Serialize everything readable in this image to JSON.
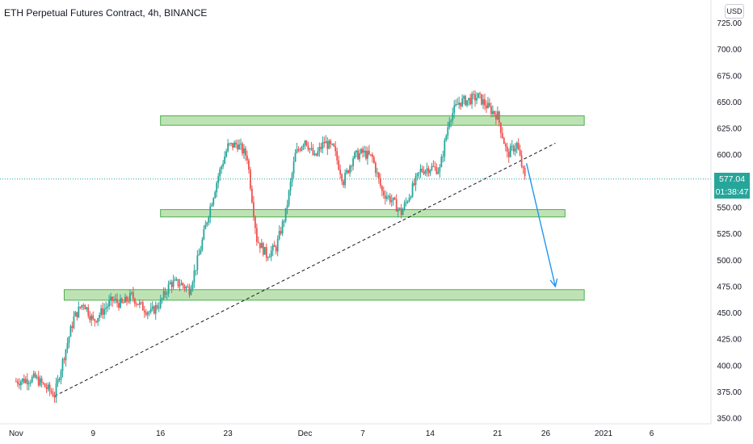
{
  "header": {
    "title": "ETH Perpetual Futures Contract, 4h, BINANCE",
    "currency": "USD"
  },
  "colors": {
    "up": "#26a69a",
    "down": "#ef5350",
    "zone_fill": "#bfe2b4",
    "zone_stroke": "#4caf50",
    "arrow": "#2196f3",
    "trendline": "#131722",
    "current_line": "#26a69a"
  },
  "price_tags": {
    "last_price": "577.04",
    "countdown": "01:38:47"
  },
  "chart_data": {
    "type": "candlestick",
    "interval": "4h",
    "x_labels": [
      "Nov",
      "9",
      "16",
      "23",
      "Dec",
      "7",
      "14",
      "21",
      "26",
      "2021",
      "6"
    ],
    "y_ticks": [
      "725.00",
      "700.00",
      "675.00",
      "650.00",
      "625.00",
      "600.00",
      "575.00",
      "550.00",
      "525.00",
      "500.00",
      "475.00",
      "450.00",
      "425.00",
      "400.00",
      "375.00",
      "350.00"
    ],
    "ylim": [
      345,
      735
    ],
    "current_price": 577.04,
    "anchors": [
      [
        "2020-11-01",
        385
      ],
      [
        "2020-11-03",
        388
      ],
      [
        "2020-11-05",
        372
      ],
      [
        "2020-11-06",
        410
      ],
      [
        "2020-11-07",
        445
      ],
      [
        "2020-11-08",
        460
      ],
      [
        "2020-11-09",
        442
      ],
      [
        "2020-11-10",
        452
      ],
      [
        "2020-11-11",
        462
      ],
      [
        "2020-11-12",
        458
      ],
      [
        "2020-11-13",
        466
      ],
      [
        "2020-11-14",
        456
      ],
      [
        "2020-11-15",
        450
      ],
      [
        "2020-11-16",
        460
      ],
      [
        "2020-11-17",
        478
      ],
      [
        "2020-11-18",
        478
      ],
      [
        "2020-11-19",
        472
      ],
      [
        "2020-11-20",
        505
      ],
      [
        "2020-11-21",
        545
      ],
      [
        "2020-11-22",
        580
      ],
      [
        "2020-11-23",
        608
      ],
      [
        "2020-11-24",
        610
      ],
      [
        "2020-11-25",
        598
      ],
      [
        "2020-11-26",
        520
      ],
      [
        "2020-11-27",
        505
      ],
      [
        "2020-11-28",
        512
      ],
      [
        "2020-11-29",
        545
      ],
      [
        "2020-11-30",
        600
      ],
      [
        "2020-12-01",
        615
      ],
      [
        "2020-12-02",
        597
      ],
      [
        "2020-12-03",
        612
      ],
      [
        "2020-12-04",
        605
      ],
      [
        "2020-12-05",
        575
      ],
      [
        "2020-12-06",
        598
      ],
      [
        "2020-12-07",
        602
      ],
      [
        "2020-12-08",
        597
      ],
      [
        "2020-12-09",
        565
      ],
      [
        "2020-12-10",
        557
      ],
      [
        "2020-12-11",
        545
      ],
      [
        "2020-12-12",
        565
      ],
      [
        "2020-12-13",
        585
      ],
      [
        "2020-12-14",
        588
      ],
      [
        "2020-12-15",
        586
      ],
      [
        "2020-12-16",
        635
      ],
      [
        "2020-12-17",
        650
      ],
      [
        "2020-12-18",
        652
      ],
      [
        "2020-12-19",
        655
      ],
      [
        "2020-12-20",
        645
      ],
      [
        "2020-12-21",
        637
      ],
      [
        "2020-12-22",
        600
      ],
      [
        "2020-12-23",
        610
      ],
      [
        "2020-12-23T12",
        590
      ],
      [
        "2020-12-23T20",
        577
      ]
    ],
    "zones": [
      {
        "top": 637,
        "bottom": 628,
        "from": "2020-11-16",
        "to": "2020-12-30"
      },
      {
        "top": 548,
        "bottom": 541,
        "from": "2020-11-16",
        "to": "2020-12-28"
      },
      {
        "top": 472,
        "bottom": 462,
        "from": "2020-11-06",
        "to": "2020-12-30"
      }
    ],
    "trendline": {
      "from": [
        "2020-11-05",
        371
      ],
      "to": [
        "2020-12-27",
        611
      ]
    },
    "arrow": {
      "from": [
        "2020-12-24",
        592
      ],
      "to": [
        "2020-12-27",
        475
      ]
    },
    "grid": false
  }
}
